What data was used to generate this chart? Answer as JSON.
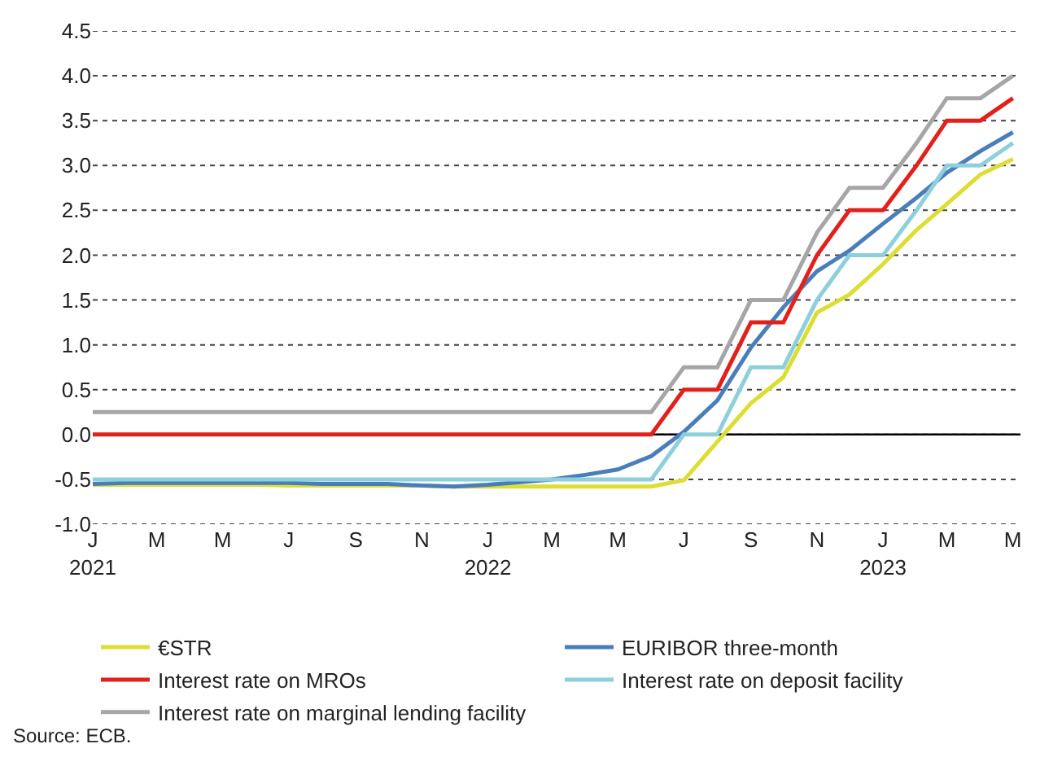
{
  "chart_data": {
    "type": "line",
    "x": [
      "2021-01",
      "2021-02",
      "2021-03",
      "2021-04",
      "2021-05",
      "2021-06",
      "2021-07",
      "2021-08",
      "2021-09",
      "2021-10",
      "2021-11",
      "2021-12",
      "2022-01",
      "2022-02",
      "2022-03",
      "2022-04",
      "2022-05",
      "2022-06",
      "2022-07",
      "2022-08",
      "2022-09",
      "2022-10",
      "2022-11",
      "2022-12",
      "2023-01",
      "2023-02",
      "2023-03",
      "2023-04",
      "2023-05"
    ],
    "series": [
      {
        "name": "€STR",
        "color": "#dddd33",
        "values": [
          -0.56,
          -0.56,
          -0.56,
          -0.56,
          -0.56,
          -0.56,
          -0.57,
          -0.57,
          -0.57,
          -0.57,
          -0.57,
          -0.58,
          -0.58,
          -0.58,
          -0.58,
          -0.58,
          -0.58,
          -0.58,
          -0.51,
          -0.08,
          0.35,
          0.64,
          1.36,
          1.56,
          1.9,
          2.28,
          2.57,
          2.9,
          3.07
        ]
      },
      {
        "name": "EURIBOR three-month",
        "color": "#4a7ebb",
        "values": [
          -0.55,
          -0.54,
          -0.54,
          -0.54,
          -0.54,
          -0.54,
          -0.54,
          -0.55,
          -0.55,
          -0.55,
          -0.57,
          -0.58,
          -0.56,
          -0.53,
          -0.5,
          -0.45,
          -0.39,
          -0.24,
          0.03,
          0.38,
          0.97,
          1.42,
          1.82,
          2.05,
          2.35,
          2.64,
          2.92,
          3.16,
          3.37
        ]
      },
      {
        "name": "Interest rate on MROs",
        "color": "#e3201b",
        "values": [
          0,
          0,
          0,
          0,
          0,
          0,
          0,
          0,
          0,
          0,
          0,
          0,
          0,
          0,
          0,
          0,
          0,
          0,
          0.5,
          0.5,
          1.25,
          1.25,
          2,
          2.5,
          2.5,
          3,
          3.5,
          3.5,
          3.75
        ]
      },
      {
        "name": "Interest rate on deposit facility",
        "color": "#8ecfdc",
        "values": [
          -0.5,
          -0.5,
          -0.5,
          -0.5,
          -0.5,
          -0.5,
          -0.5,
          -0.5,
          -0.5,
          -0.5,
          -0.5,
          -0.5,
          -0.5,
          -0.5,
          -0.5,
          -0.5,
          -0.5,
          -0.5,
          0,
          0,
          0.75,
          0.75,
          1.5,
          2,
          2,
          2.5,
          3,
          3,
          3.25
        ]
      },
      {
        "name": "Interest rate on marginal lending facility",
        "color": "#a6a6a8",
        "values": [
          0.25,
          0.25,
          0.25,
          0.25,
          0.25,
          0.25,
          0.25,
          0.25,
          0.25,
          0.25,
          0.25,
          0.25,
          0.25,
          0.25,
          0.25,
          0.25,
          0.25,
          0.25,
          0.75,
          0.75,
          1.5,
          1.5,
          2.25,
          2.75,
          2.75,
          3.25,
          3.75,
          3.75,
          4
        ]
      }
    ],
    "xlim": [
      "2021-01",
      "2023-05-08"
    ],
    "xticks": [
      {
        "value": "2021-01",
        "label": "J\n2021"
      },
      {
        "value": "2021-03",
        "label": "M"
      },
      {
        "value": "2021-05",
        "label": "M"
      },
      {
        "value": "2021-07",
        "label": "J"
      },
      {
        "value": "2021-09",
        "label": "S"
      },
      {
        "value": "2021-11",
        "label": "N"
      },
      {
        "value": "2022-01",
        "label": "J\n2022"
      },
      {
        "value": "2022-03",
        "label": "M"
      },
      {
        "value": "2022-05",
        "label": "M"
      },
      {
        "value": "2022-07",
        "label": "J"
      },
      {
        "value": "2022-09",
        "label": "S"
      },
      {
        "value": "2022-11",
        "label": "N"
      },
      {
        "value": "2023-01",
        "label": "J\n2023"
      },
      {
        "value": "2023-03",
        "label": "M"
      },
      {
        "value": "2023-05",
        "label": "M"
      }
    ],
    "ylim": [
      -1.0,
      4.5
    ],
    "yticks": [
      {
        "value": -1,
        "label": "-1.0"
      },
      {
        "value": -0.5,
        "label": "-0.5"
      },
      {
        "value": 0,
        "label": "0.0"
      },
      {
        "value": 0.5,
        "label": "0.5"
      },
      {
        "value": 1,
        "label": "1.0"
      },
      {
        "value": 1.5,
        "label": "1.5"
      },
      {
        "value": 2,
        "label": "2.0"
      },
      {
        "value": 2.5,
        "label": "2.5"
      },
      {
        "value": 3,
        "label": "3.0"
      },
      {
        "value": 3.5,
        "label": "3.5"
      },
      {
        "value": 4,
        "label": "4.0"
      },
      {
        "value": 4.5,
        "label": "4.5"
      }
    ],
    "ref_lines": [
      {
        "axis": "y",
        "value": 0,
        "color": "#000000",
        "line_style": "solid"
      }
    ],
    "grid": "y",
    "line_style": "solid",
    "marker": "none",
    "legend": "bottom",
    "annotations": [
      "Source: ECB."
    ]
  }
}
